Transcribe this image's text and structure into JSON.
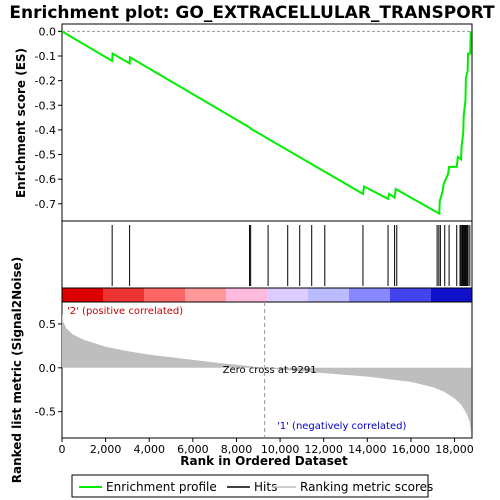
{
  "title": "Enrichment plot: GO_EXTRACELLULAR_TRANSPORT",
  "colors": {
    "es_line": "#00ee00",
    "hits": "#000000",
    "metric_fill": "#bebebe",
    "positive_label": "#cc0000",
    "negative_label": "#0000cc",
    "zero_line": "#999999"
  },
  "chart_data": [
    {
      "type": "line",
      "panel": "enrichment-score",
      "ylabel": "Enrichment score (ES)",
      "xlim": [
        0,
        18800
      ],
      "ylim": [
        -0.77,
        0.03
      ],
      "yticks": [
        0.0,
        -0.1,
        -0.2,
        -0.3,
        -0.4,
        -0.5,
        -0.6,
        -0.7
      ],
      "ytick_labels": [
        "0.0",
        "-0.1",
        "-0.2",
        "-0.3",
        "-0.4",
        "-0.5",
        "-0.6",
        "-0.7"
      ],
      "series": [
        {
          "name": "Enrichment profile",
          "x": [
            0,
            2300,
            2320,
            3100,
            3120,
            8600,
            8650,
            13800,
            13850,
            14950,
            15000,
            15250,
            15300,
            17300,
            17320,
            17450,
            17500,
            17700,
            17750,
            18100,
            18150,
            18300,
            18320,
            18400,
            18420,
            18500,
            18520,
            18600,
            18620,
            18720,
            18740
          ],
          "values": [
            0.0,
            -0.12,
            -0.09,
            -0.13,
            -0.105,
            -0.39,
            -0.395,
            -0.66,
            -0.63,
            -0.68,
            -0.66,
            -0.675,
            -0.64,
            -0.74,
            -0.69,
            -0.65,
            -0.62,
            -0.58,
            -0.55,
            -0.55,
            -0.51,
            -0.52,
            -0.47,
            -0.41,
            -0.34,
            -0.28,
            -0.19,
            -0.16,
            -0.09,
            -0.09,
            0.0
          ]
        }
      ]
    },
    {
      "type": "scatter",
      "panel": "hits",
      "x": [
        2300,
        3100,
        8600,
        8650,
        9450,
        10350,
        10900,
        11450,
        12050,
        13800,
        14950,
        15250,
        15350,
        17200,
        17280,
        17350,
        17550,
        17750,
        18100,
        18250,
        18300,
        18350,
        18380,
        18420,
        18460,
        18500,
        18540,
        18580,
        18620,
        18700
      ]
    },
    {
      "type": "area",
      "panel": "ranked-list",
      "xlabel": "Rank in Ordered Dataset",
      "ylabel": "Ranked list metric (Signal2Noise)",
      "xlim": [
        0,
        18800
      ],
      "ylim": [
        -0.8,
        0.75
      ],
      "xticks": [
        0,
        2000,
        4000,
        6000,
        8000,
        10000,
        12000,
        14000,
        16000,
        18000
      ],
      "xtick_labels": [
        "0",
        "2,000",
        "4,000",
        "6,000",
        "8,000",
        "10,000",
        "12,000",
        "14,000",
        "16,000",
        "18,000"
      ],
      "yticks": [
        0.5,
        0.0,
        -0.5
      ],
      "ytick_labels": [
        "0.5",
        "0.0",
        "-0.5"
      ],
      "x": [
        0,
        60,
        200,
        500,
        1000,
        2000,
        3000,
        4000,
        5000,
        6000,
        7000,
        8000,
        9291,
        10000,
        11000,
        12000,
        13000,
        14000,
        15000,
        16000,
        16500,
        17000,
        17500,
        18000,
        18300,
        18500,
        18600,
        18700,
        18760
      ],
      "values": [
        0.62,
        0.52,
        0.45,
        0.38,
        0.32,
        0.24,
        0.19,
        0.15,
        0.12,
        0.09,
        0.06,
        0.035,
        0.0,
        -0.02,
        -0.04,
        -0.06,
        -0.08,
        -0.1,
        -0.13,
        -0.16,
        -0.19,
        -0.22,
        -0.27,
        -0.35,
        -0.42,
        -0.5,
        -0.55,
        -0.62,
        -0.76
      ]
    }
  ],
  "annotations": {
    "positive": "'2' (positive correlated)",
    "zero_cross": "Zero cross at 9291",
    "negative": "'1' (negatively correlated)"
  },
  "legend": {
    "items": [
      {
        "label": "Enrichment profile",
        "color": "#00ee00"
      },
      {
        "label": "Hits",
        "color": "#000000"
      },
      {
        "label": "Ranking metric scores",
        "color": "#bebebe"
      }
    ]
  },
  "color_bar": {
    "stops": [
      "#dd0000",
      "#ee3333",
      "#ff6666",
      "#ff9999",
      "#ffbbdd",
      "#ddccff",
      "#bbbbff",
      "#8888ff",
      "#4444ee",
      "#1111cc"
    ]
  }
}
